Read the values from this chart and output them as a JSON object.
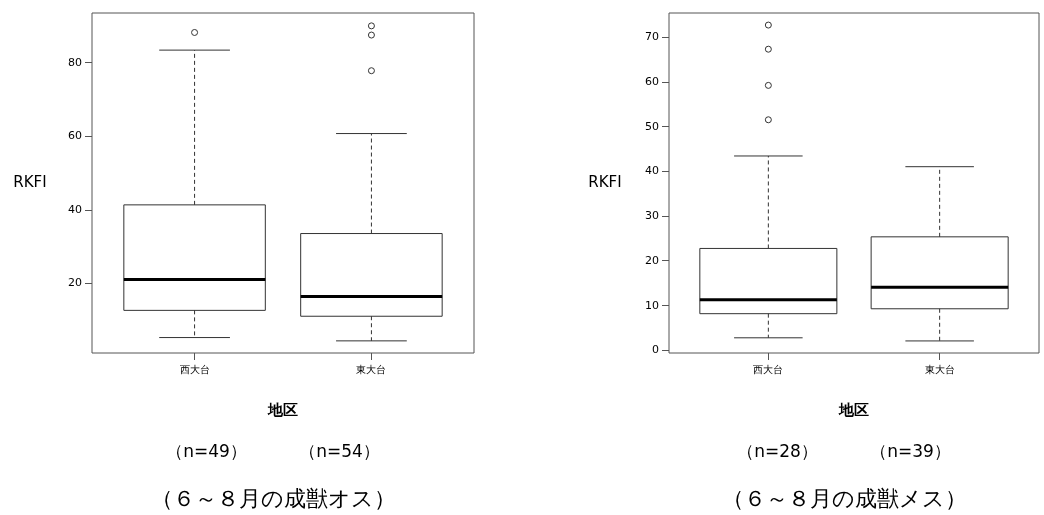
{
  "chart_data": [
    {
      "type": "box",
      "ylabel": "RKFI",
      "xlabel": "地区",
      "categories": [
        "西大台",
        "東大台"
      ],
      "grid": false,
      "ylim": [
        1.1,
        93.6
      ],
      "yticks": [
        20,
        40,
        60,
        80
      ],
      "boxes": [
        {
          "low": 5.3,
          "q1": 12.7,
          "median": 21.1,
          "q3": 41.4,
          "high": 83.5,
          "outliers": [
            88.3
          ]
        },
        {
          "low": 4.4,
          "q1": 11.1,
          "median": 16.5,
          "q3": 33.6,
          "high": 60.8,
          "outliers": [
            77.9,
            87.6,
            90.1
          ]
        }
      ],
      "annotations": [
        "（n=49）",
        "（n=54）",
        "（６～８月の成獣オス）"
      ]
    },
    {
      "type": "box",
      "ylabel": "RKFI",
      "xlabel": "地区",
      "categories": [
        "西大台",
        "東大台"
      ],
      "grid": false,
      "ylim": [
        -0.6,
        75.5
      ],
      "yticks": [
        0,
        10,
        20,
        30,
        40,
        50,
        60,
        70
      ],
      "boxes": [
        {
          "low": 2.8,
          "q1": 8.2,
          "median": 11.3,
          "q3": 22.8,
          "high": 43.5,
          "outliers": [
            51.6,
            59.3,
            67.4,
            72.8
          ]
        },
        {
          "low": 2.1,
          "q1": 9.3,
          "median": 14.1,
          "q3": 25.4,
          "high": 41.1
        }
      ],
      "annotations": [
        "（n=28）",
        "（n=39）",
        "（６～８月の成獣メス）"
      ]
    }
  ]
}
